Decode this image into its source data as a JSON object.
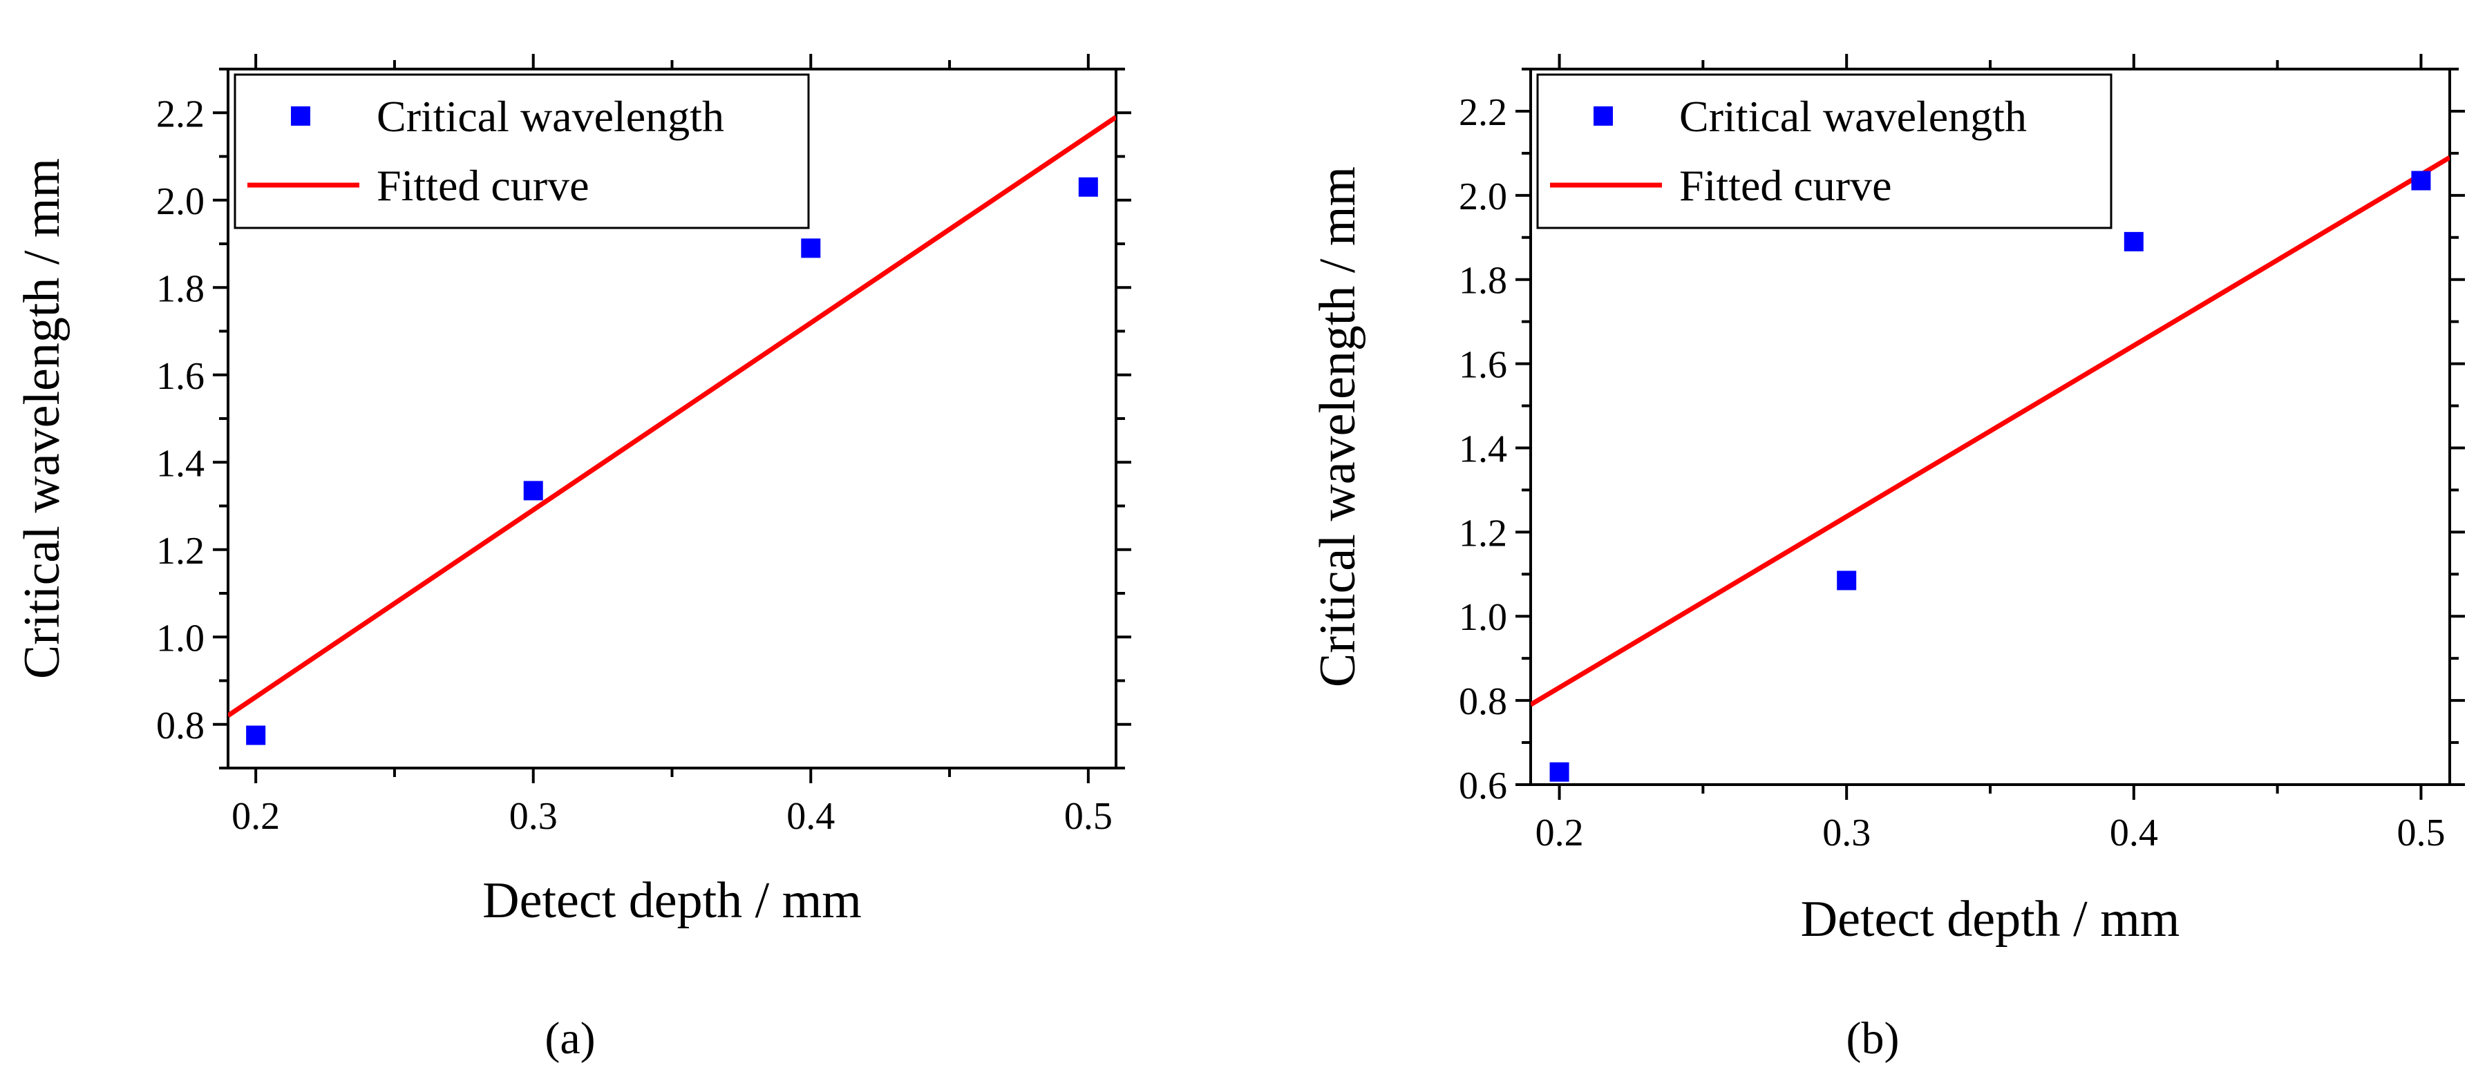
{
  "chart_data": [
    {
      "type": "scatter",
      "panel_label": "(a)",
      "xlabel": "Detect depth / mm",
      "ylabel": "Critical wavelength / mm",
      "xlim": [
        0.19,
        0.51
      ],
      "ylim": [
        0.7,
        2.3
      ],
      "xticks": [
        0.2,
        0.3,
        0.4,
        0.5
      ],
      "xtick_labels": [
        "0.2",
        "0.3",
        "0.4",
        "0.5"
      ],
      "yticks": [
        0.8,
        1.0,
        1.2,
        1.4,
        1.6,
        1.8,
        2.0,
        2.2
      ],
      "ytick_labels": [
        "0.8",
        "1.0",
        "1.2",
        "1.4",
        "1.6",
        "1.8",
        "2.0",
        "2.2"
      ],
      "legend_position": "top-left",
      "series": [
        {
          "name": "Critical wavelength",
          "kind": "scatter",
          "x": [
            0.2,
            0.3,
            0.4,
            0.5
          ],
          "y": [
            0.775,
            1.335,
            1.89,
            2.03
          ],
          "color": "#0000ff"
        },
        {
          "name": "Fitted curve",
          "kind": "line",
          "x": [
            0.19,
            0.51
          ],
          "y": [
            0.82,
            2.19
          ],
          "color": "#ff0000"
        }
      ]
    },
    {
      "type": "scatter",
      "panel_label": "(b)",
      "xlabel": "Detect depth / mm",
      "ylabel": "Critical wavelength / mm",
      "xlim": [
        0.19,
        0.51
      ],
      "ylim": [
        0.6,
        2.3
      ],
      "xticks": [
        0.2,
        0.3,
        0.4,
        0.5
      ],
      "xtick_labels": [
        "0.2",
        "0.3",
        "0.4",
        "0.5"
      ],
      "yticks": [
        0.6,
        0.8,
        1.0,
        1.2,
        1.4,
        1.6,
        1.8,
        2.0,
        2.2
      ],
      "ytick_labels": [
        "0.6",
        "0.8",
        "1.0",
        "1.2",
        "1.4",
        "1.6",
        "1.8",
        "2.0",
        "2.2"
      ],
      "legend_position": "top-left",
      "series": [
        {
          "name": "Critical wavelength",
          "kind": "scatter",
          "x": [
            0.2,
            0.3,
            0.4,
            0.5
          ],
          "y": [
            0.63,
            1.085,
            1.89,
            2.035
          ],
          "color": "#0000ff"
        },
        {
          "name": "Fitted curve",
          "kind": "line",
          "x": [
            0.19,
            0.51
          ],
          "y": [
            0.79,
            2.09
          ],
          "color": "#ff0000"
        }
      ]
    }
  ]
}
